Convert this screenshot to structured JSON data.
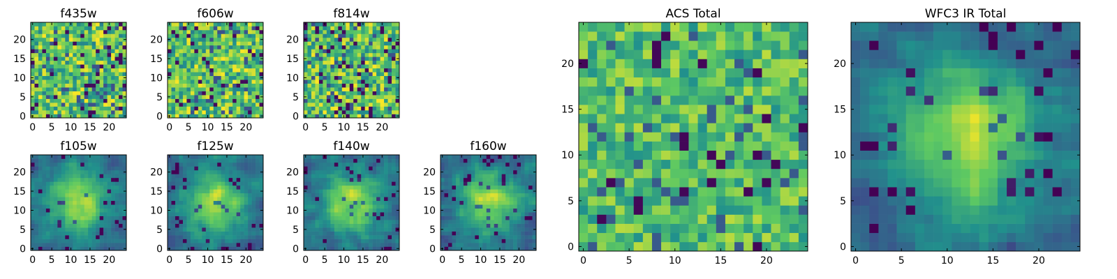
{
  "chart_data": [
    {
      "type": "heatmap",
      "title": "f435w",
      "grid_size": 25,
      "texture": "fine_noise",
      "x_ticks": [
        "0",
        "5",
        "10",
        "15",
        "20"
      ],
      "y_ticks": [
        "0",
        "5",
        "10",
        "15",
        "20"
      ],
      "xlim": [
        -0.5,
        24.5
      ],
      "ylim": [
        -0.5,
        24.5
      ]
    },
    {
      "type": "heatmap",
      "title": "f606w",
      "grid_size": 25,
      "texture": "fine_noise",
      "x_ticks": [
        "0",
        "5",
        "10",
        "15",
        "20"
      ],
      "y_ticks": [
        "0",
        "5",
        "10",
        "15",
        "20"
      ],
      "xlim": [
        -0.5,
        24.5
      ],
      "ylim": [
        -0.5,
        24.5
      ]
    },
    {
      "type": "heatmap",
      "title": "f814w",
      "grid_size": 25,
      "texture": "fine_noise",
      "x_ticks": [
        "0",
        "5",
        "10",
        "15",
        "20"
      ],
      "y_ticks": [
        "0",
        "5",
        "10",
        "15",
        "20"
      ],
      "xlim": [
        -0.5,
        24.5
      ],
      "ylim": [
        -0.5,
        24.5
      ]
    },
    {
      "type": "heatmap",
      "title": "f105w",
      "grid_size": 25,
      "texture": "smooth_source",
      "x_ticks": [
        "0",
        "5",
        "10",
        "15",
        "20"
      ],
      "y_ticks": [
        "0",
        "5",
        "10",
        "15",
        "20"
      ],
      "xlim": [
        -0.5,
        24.5
      ],
      "ylim": [
        -0.5,
        24.5
      ]
    },
    {
      "type": "heatmap",
      "title": "f125w",
      "grid_size": 25,
      "texture": "smooth_source",
      "x_ticks": [
        "0",
        "5",
        "10",
        "15",
        "20"
      ],
      "y_ticks": [
        "0",
        "5",
        "10",
        "15",
        "20"
      ],
      "xlim": [
        -0.5,
        24.5
      ],
      "ylim": [
        -0.5,
        24.5
      ]
    },
    {
      "type": "heatmap",
      "title": "f140w",
      "grid_size": 25,
      "texture": "smooth_source",
      "x_ticks": [
        "0",
        "5",
        "10",
        "15",
        "20"
      ],
      "y_ticks": [
        "0",
        "5",
        "10",
        "15",
        "20"
      ],
      "xlim": [
        -0.5,
        24.5
      ],
      "ylim": [
        -0.5,
        24.5
      ]
    },
    {
      "type": "heatmap",
      "title": "f160w",
      "grid_size": 25,
      "texture": "smooth_source",
      "x_ticks": [
        "0",
        "5",
        "10",
        "15",
        "20"
      ],
      "y_ticks": [
        "0",
        "5",
        "10",
        "15",
        "20"
      ],
      "xlim": [
        -0.5,
        24.5
      ],
      "ylim": [
        -0.5,
        24.5
      ]
    },
    {
      "type": "heatmap",
      "title": "ACS Total",
      "grid_size": 25,
      "texture": "coarse_noise",
      "x_ticks": [
        "0",
        "5",
        "10",
        "15",
        "20"
      ],
      "y_ticks": [
        "0",
        "5",
        "10",
        "15",
        "20"
      ],
      "xlim": [
        -0.5,
        24.5
      ],
      "ylim": [
        -0.5,
        24.5
      ]
    },
    {
      "type": "heatmap",
      "title": "WFC3 IR Total",
      "grid_size": 25,
      "texture": "smooth_source",
      "x_ticks": [
        "0",
        "5",
        "10",
        "15",
        "20"
      ],
      "y_ticks": [
        "0",
        "5",
        "10",
        "15",
        "20"
      ],
      "xlim": [
        -0.5,
        24.5
      ],
      "ylim": [
        -0.5,
        24.5
      ]
    }
  ],
  "colormap": {
    "name": "viridis",
    "stops": [
      "#440154",
      "#3b528b",
      "#21918c",
      "#5ec962",
      "#fde725"
    ]
  }
}
